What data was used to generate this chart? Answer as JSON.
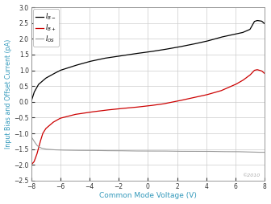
{
  "xlabel": "Common Mode Voltage (V)",
  "ylabel": "Input Bias and Offset Current (pA)",
  "xlim": [
    -8,
    8
  ],
  "ylim": [
    -2.5,
    3
  ],
  "xticks": [
    -8,
    -6,
    -4,
    -2,
    0,
    2,
    4,
    6,
    8
  ],
  "yticks": [
    -2.5,
    -2,
    -1.5,
    -1,
    -0.5,
    0,
    0.5,
    1,
    1.5,
    2,
    2.5,
    3
  ],
  "line_colors": [
    "#000000",
    "#cc0000",
    "#999999"
  ],
  "background_color": "#ffffff",
  "grid_color": "#cccccc",
  "watermark": "©2010",
  "keypoints_bm": [
    [
      -8,
      0.0
    ],
    [
      -7.8,
      0.3
    ],
    [
      -7.5,
      0.55
    ],
    [
      -7.0,
      0.75
    ],
    [
      -6.5,
      0.88
    ],
    [
      -6.0,
      1.0
    ],
    [
      -5.0,
      1.15
    ],
    [
      -4.0,
      1.28
    ],
    [
      -3.0,
      1.38
    ],
    [
      -2.0,
      1.45
    ],
    [
      -1.0,
      1.52
    ],
    [
      0.0,
      1.58
    ],
    [
      1.0,
      1.65
    ],
    [
      2.0,
      1.73
    ],
    [
      3.0,
      1.82
    ],
    [
      4.0,
      1.92
    ],
    [
      5.0,
      2.05
    ],
    [
      6.0,
      2.15
    ],
    [
      6.5,
      2.2
    ],
    [
      7.0,
      2.3
    ],
    [
      7.3,
      2.55
    ],
    [
      7.5,
      2.58
    ],
    [
      7.8,
      2.56
    ],
    [
      8.0,
      2.48
    ]
  ],
  "keypoints_bp": [
    [
      -8,
      -2.0
    ],
    [
      -7.8,
      -1.9
    ],
    [
      -7.6,
      -1.65
    ],
    [
      -7.4,
      -1.3
    ],
    [
      -7.2,
      -1.0
    ],
    [
      -7.0,
      -0.85
    ],
    [
      -6.5,
      -0.65
    ],
    [
      -6.0,
      -0.52
    ],
    [
      -5.0,
      -0.4
    ],
    [
      -4.0,
      -0.33
    ],
    [
      -3.0,
      -0.27
    ],
    [
      -2.0,
      -0.22
    ],
    [
      -1.0,
      -0.18
    ],
    [
      0.0,
      -0.13
    ],
    [
      1.0,
      -0.07
    ],
    [
      2.0,
      0.02
    ],
    [
      3.0,
      0.12
    ],
    [
      4.0,
      0.22
    ],
    [
      5.0,
      0.35
    ],
    [
      6.0,
      0.55
    ],
    [
      6.5,
      0.68
    ],
    [
      7.0,
      0.85
    ],
    [
      7.3,
      1.0
    ],
    [
      7.5,
      1.02
    ],
    [
      7.8,
      0.98
    ],
    [
      8.0,
      0.9
    ]
  ],
  "keypoints_os": [
    [
      -8,
      -1.1
    ],
    [
      -7.8,
      -1.25
    ],
    [
      -7.6,
      -1.38
    ],
    [
      -7.5,
      -1.42
    ],
    [
      -7.3,
      -1.47
    ],
    [
      -7.0,
      -1.5
    ],
    [
      -6.5,
      -1.52
    ],
    [
      -6.0,
      -1.53
    ],
    [
      -5.0,
      -1.54
    ],
    [
      -4.0,
      -1.54
    ],
    [
      -3.0,
      -1.55
    ],
    [
      -2.0,
      -1.55
    ],
    [
      -1.0,
      -1.56
    ],
    [
      0.0,
      -1.56
    ],
    [
      1.0,
      -1.56
    ],
    [
      2.0,
      -1.57
    ],
    [
      3.0,
      -1.57
    ],
    [
      4.0,
      -1.57
    ],
    [
      5.0,
      -1.58
    ],
    [
      6.0,
      -1.58
    ],
    [
      7.0,
      -1.59
    ],
    [
      7.5,
      -1.6
    ],
    [
      8.0,
      -1.6
    ]
  ]
}
